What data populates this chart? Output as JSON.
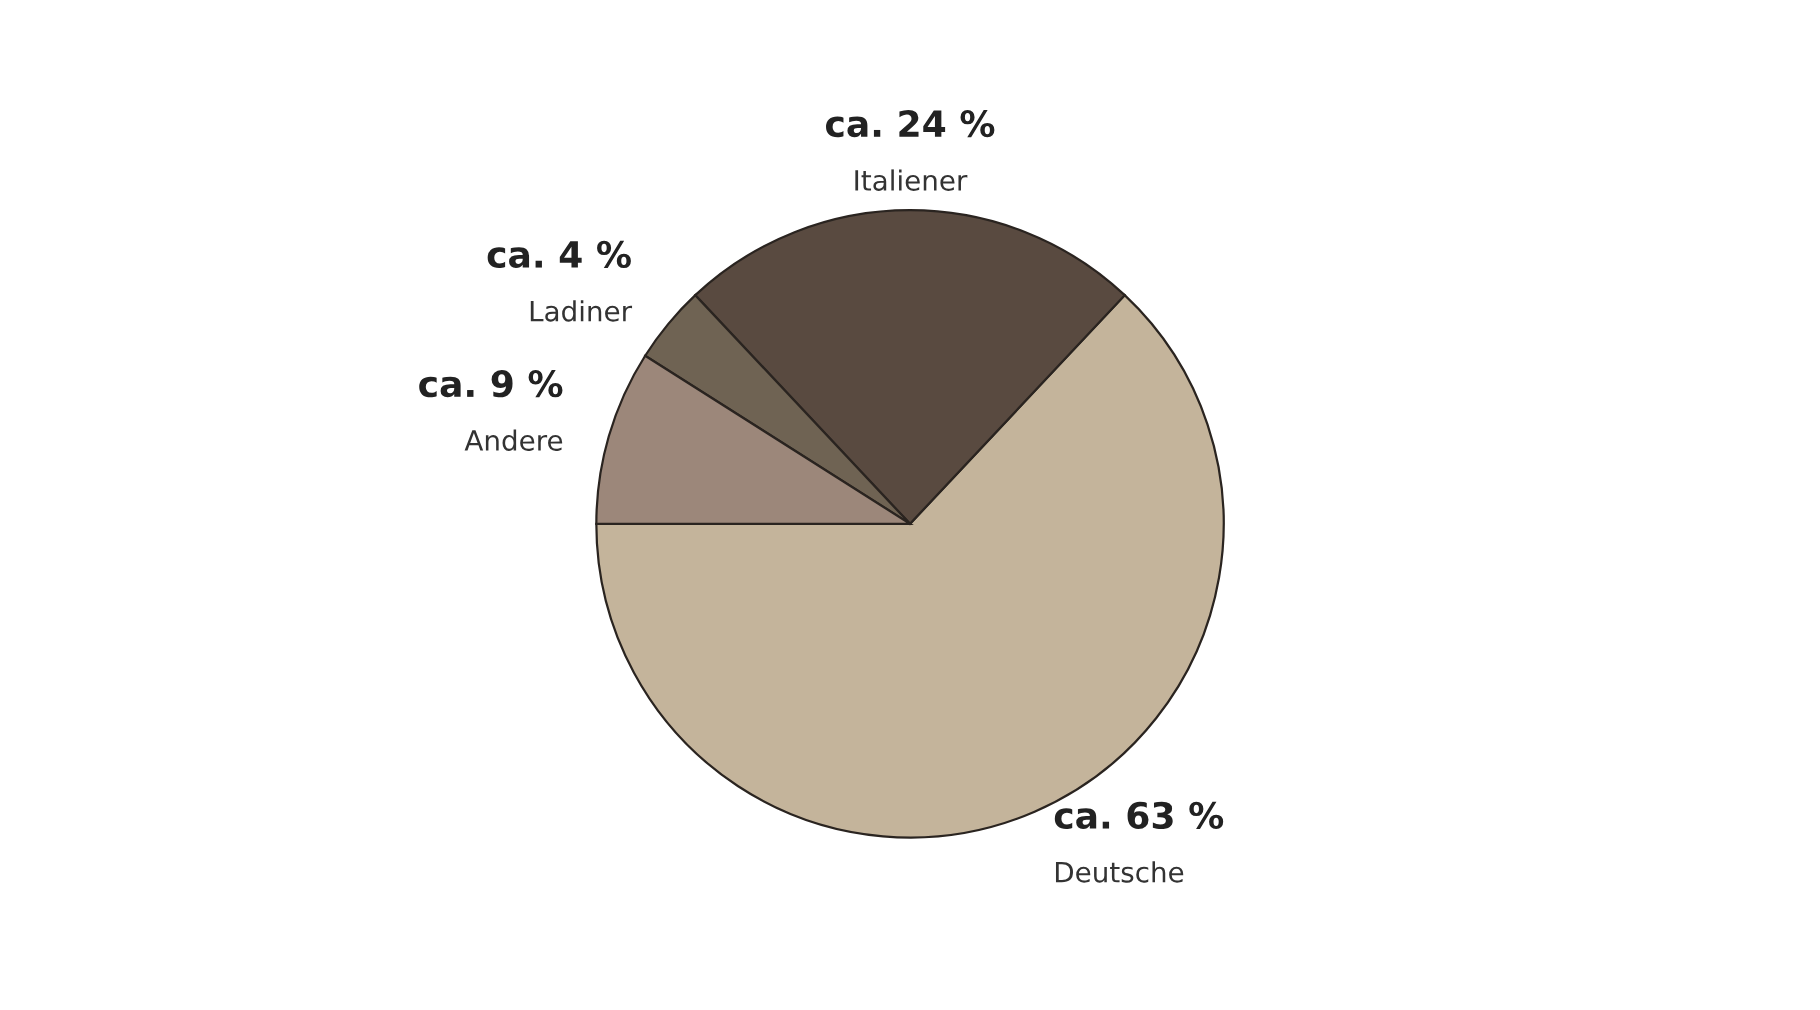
{
  "chart_data": {
    "type": "pie",
    "categories": [
      "Deutsche",
      "Italiener",
      "Ladiner",
      "Andere"
    ],
    "values": [
      63,
      24,
      4,
      9
    ],
    "colors": [
      "#c4b49b",
      "#594a40",
      "#6f6353",
      "#9c877a"
    ],
    "value_labels": [
      "ca. 63 %",
      "ca. 24 %",
      "ca. 4 %",
      "ca. 9 %"
    ]
  }
}
